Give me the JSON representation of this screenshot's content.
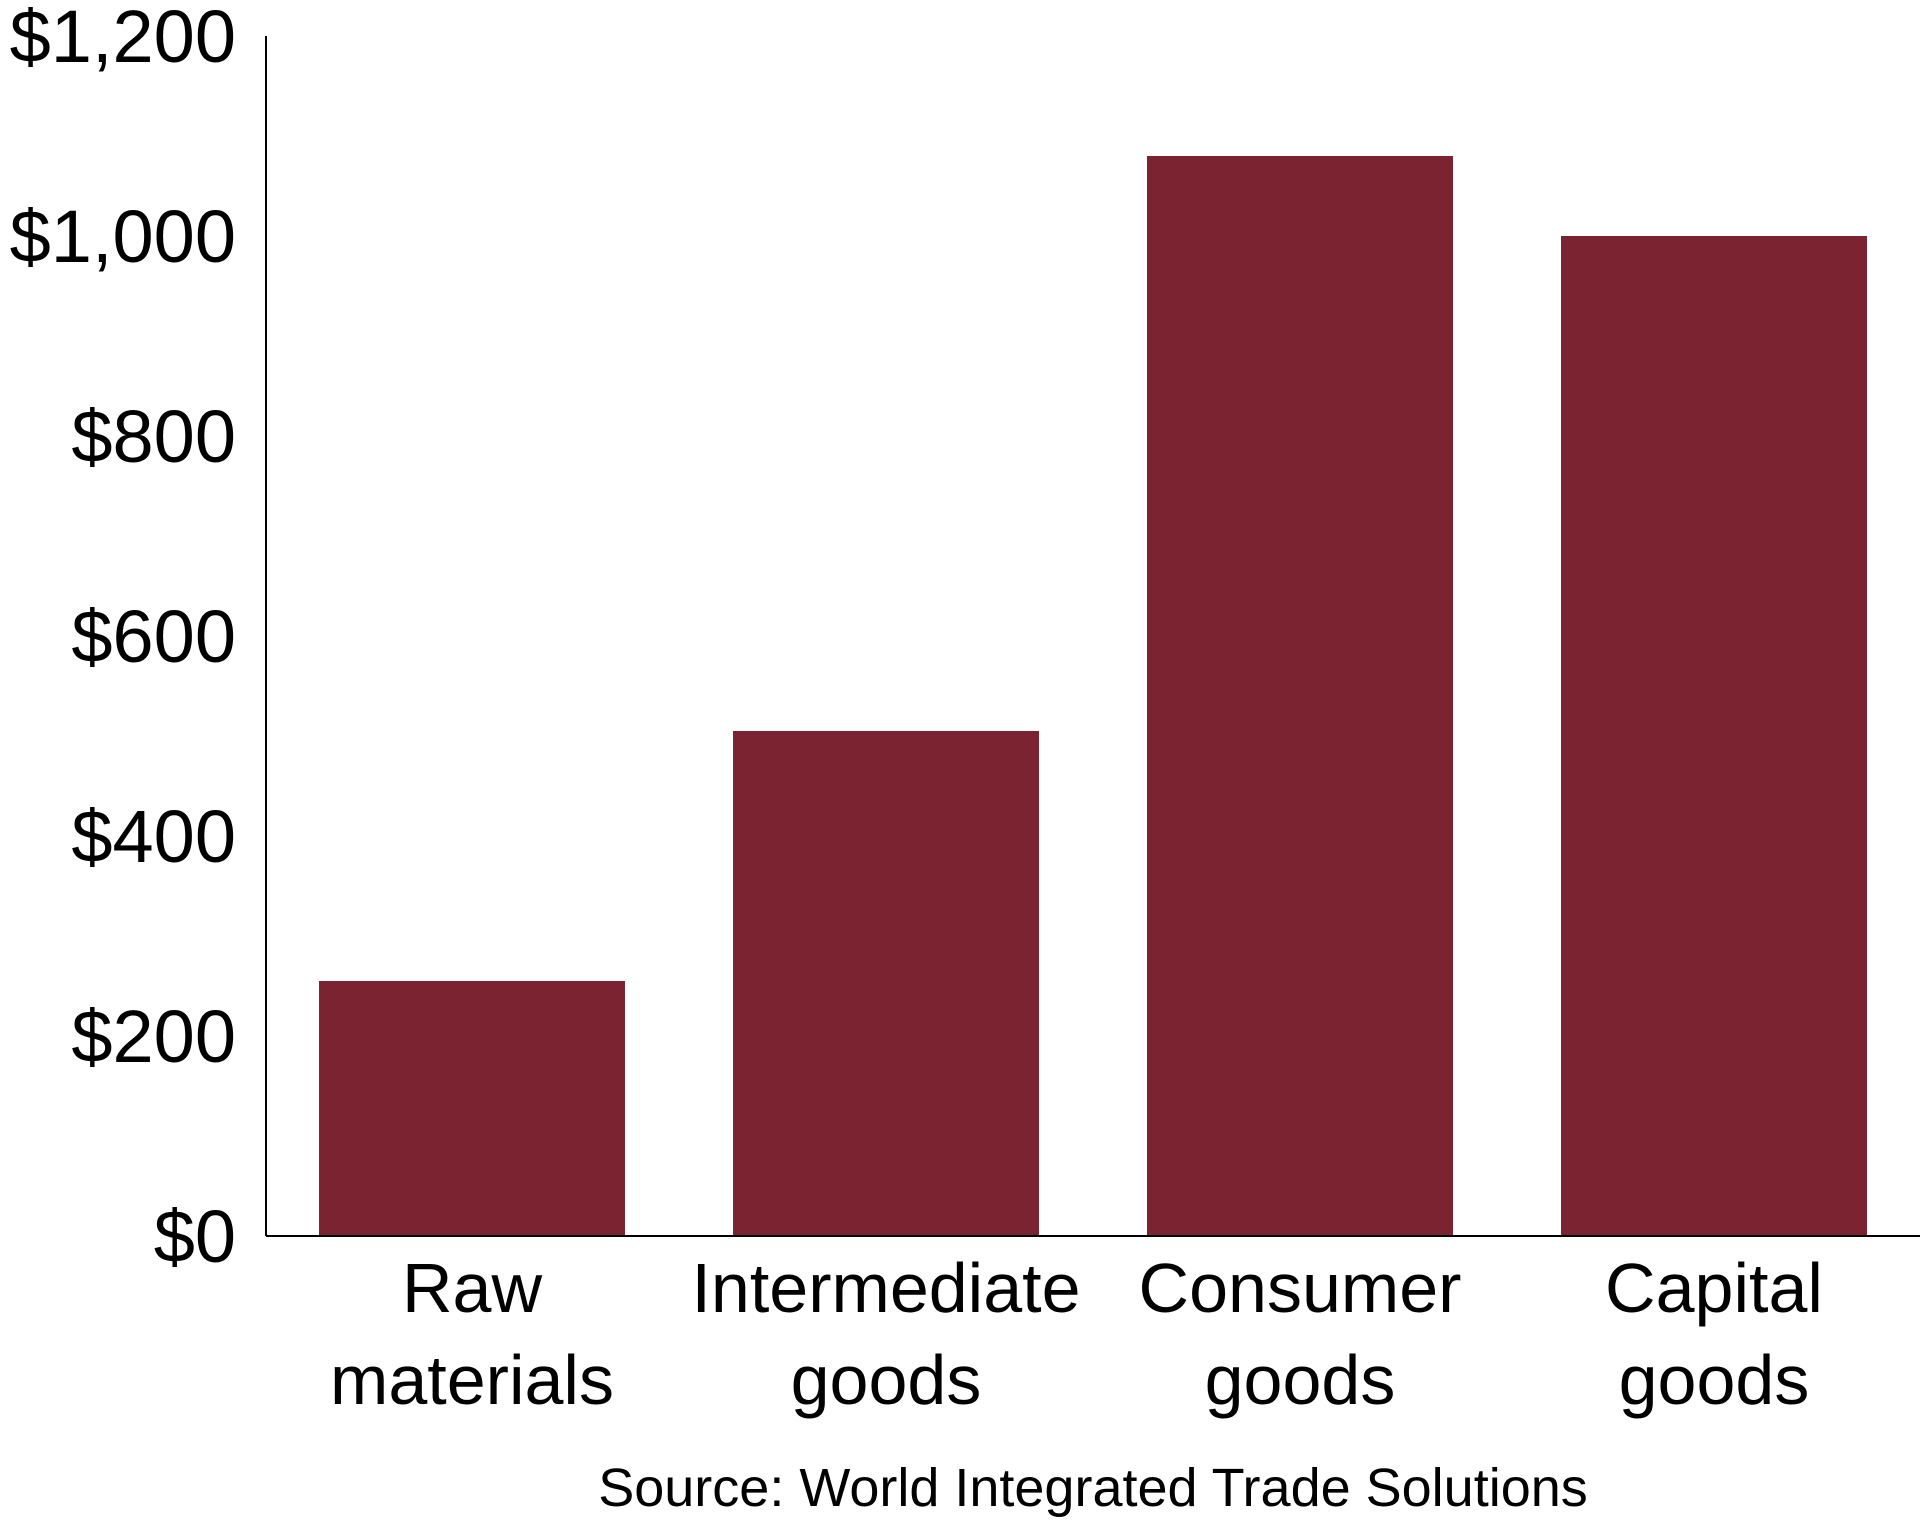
{
  "chart_data": {
    "type": "bar",
    "categories": [
      [
        "Raw",
        "materials"
      ],
      [
        "Intermediate",
        "goods"
      ],
      [
        "Consumer",
        "goods"
      ],
      [
        "Capital",
        "goods"
      ]
    ],
    "values": [
      255,
      505,
      1080,
      1000
    ],
    "ylim": [
      0,
      1200
    ],
    "yticks": [
      0,
      200,
      400,
      600,
      800,
      1000,
      1200
    ],
    "ytick_labels": [
      "$0",
      "$200",
      "$400",
      "$600",
      "$800",
      "$1,000",
      "$1,200"
    ],
    "grid": false,
    "legend": "none",
    "bar_color": "#7b2330",
    "axis_color": "#000000",
    "source": "Source: World Integrated Trade Solutions"
  }
}
